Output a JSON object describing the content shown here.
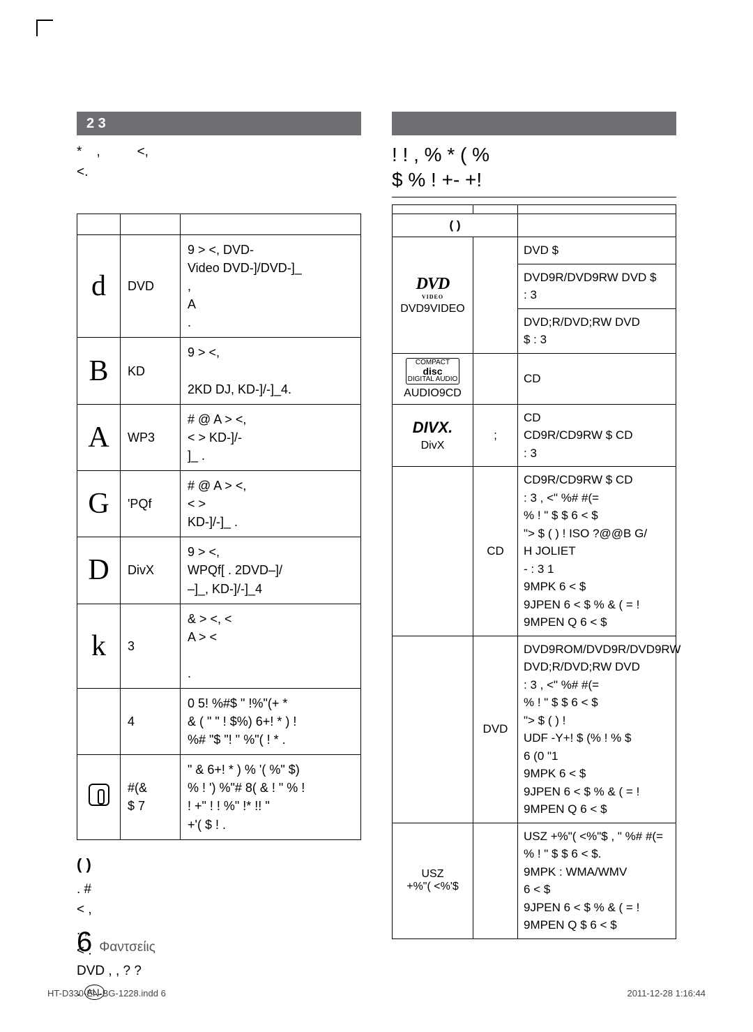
{
  "leftBand": "2   3",
  "intro": "*    ,          <,\n<.",
  "iconsTable": {
    "headers": [
      "",
      "",
      ""
    ],
    "rows": [
      {
        "icon": "d",
        "term": "DVD",
        "desc": "9  > <,          DVD-\nVideo    DVD-]/DVD-]_\n        ,\n  A\n     ."
      },
      {
        "icon": "B",
        "term": "KD",
        "desc": "9  > <,\n\n2KD DJ, KD-]/-]_4."
      },
      {
        "icon": "A",
        "term": "WP3",
        "desc": "#     @   A  > <,\n   <     >   KD-]/-\n]_  ."
      },
      {
        "icon": "G",
        "term": "'PQf",
        "desc": "#     @   A  > <,\n   <     >\nKD-]/-]_  ."
      },
      {
        "icon": "D",
        "term": "DivX",
        "desc": "9  > <,\nWPQf[     . 2DVD–]/\n–]_, KD-]/-]_4"
      },
      {
        "icon": "k",
        "term": "3",
        "desc": "&  > <,   <\nA  > <\n\n."
      },
      {
        "icon": "",
        "term": "4",
        "desc": "0 5!  %#$ \"      !%\"(+ *\n&  (   \" \"  !  $%)   6+! * ) !\n%# \"$ \"! \"  %\"(  ! * ."
      },
      {
        "icon": "tap",
        "term": "#(&\n$ 7",
        "desc": "\" &  6+! * ) %  '(  %\" $)\n  % ! ')     %\"# 8( & ! \" % !\n!  +\" ! !    %\" !*  !! \"\n+'( $  ! ."
      }
    ]
  },
  "region": {
    "head": "(   )",
    "body": ". #\n<          ,\n.                ,\n<          .\nDVD  ,          , ? ?\n."
  },
  "rightBand": "",
  "rightTitle": "!     ! ,    %  * ( %\n$   % ! +-   +!",
  "typesTable": {
    "headers": [
      "",
      "",
      ""
    ],
    "thirdHead": "(   )",
    "rows": [
      {
        "logo": "dvd",
        "label": "DVD9VIDEO",
        "mid": "",
        "cells": [
          "DVD $",
          "DVD9R/DVD9RW  DVD $\n: 3",
          "DVD;R/DVD;RW  DVD\n$   : 3"
        ]
      },
      {
        "logo": "cd",
        "label": "AUDIO9CD",
        "mid": "",
        "cells": [
          "CD"
        ]
      },
      {
        "logo": "divx",
        "label": "DivX",
        "mid": ";",
        "cells": [
          "CD\nCD9R/CD9RW $     CD\n: 3"
        ]
      },
      {
        "logo": "",
        "label": "",
        "mid": "CD",
        "cells": [
          "CD9R/CD9RW $ CD\n: 3 ,   <\"  %# #(=\n%  ! \"  $   $ 6 <  $\n\"> $ ( ) !  ISO ?@@B     G/\n    H    JOLIET\n-     : 3 1\n9MPK 6 <  $\n9JPEN 6 <  $  %  &  ( = !\n9MPEN Q     6 <  $"
        ]
      },
      {
        "logo": "",
        "label": "",
        "mid": "DVD",
        "cells": [
          "DVD9ROM/DVD9R/DVD9RW\nDVD;R/DVD;RW  DVD\n: 3 ,   <\"  %# #(=\n%  ! \"  $   $ 6 <  $\n    \"> $ ( ) !\nUDF -Y+! $ (%   !  % $\n6 (0 \"1\n9MPK 6 <  $\n9JPEN 6 <  $  %  &  ( = !\n9MPEN Q     6 <  $"
        ]
      },
      {
        "logo": "",
        "label": "USZ\n+%\"( <%'$",
        "mid": "",
        "cells": [
          "USZ +%\"( <%\"$ ,   \"  %# #(=\n%  ! \"  $   $ 6 <  $.\n9MPK :      WMA/WMV\n    6 <  $\n9JPEN 6 <  $  %  &  ( = !\n9MPEN Q $   6 <  $"
        ]
      }
    ]
  },
  "pageNum": "6",
  "pageLabel": "Φαντσείις",
  "footLeft": "HT-D330-EN-BG-1228.indd   6",
  "footRight": "2011-12-28   1:16:44"
}
